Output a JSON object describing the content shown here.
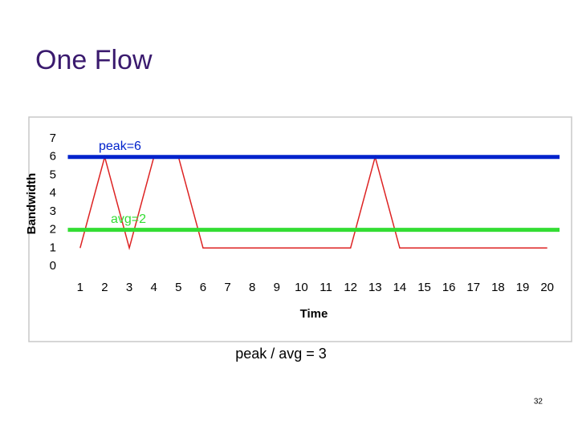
{
  "slide": {
    "title": "One Flow",
    "caption": "peak / avg = 3",
    "page_number": "32"
  },
  "chart_data": {
    "type": "line",
    "x_label": "Time",
    "y_label": "Bandwidth",
    "categories": [
      1,
      2,
      3,
      4,
      5,
      6,
      7,
      8,
      9,
      10,
      11,
      12,
      13,
      14,
      15,
      16,
      17,
      18,
      19,
      20
    ],
    "values": [
      1,
      6,
      1,
      6,
      6,
      1,
      1,
      1,
      1,
      1,
      1,
      1,
      6,
      1,
      1,
      1,
      1,
      1,
      1,
      1
    ],
    "color": "#dd2222",
    "ylim": [
      0,
      7
    ],
    "yticks": [
      0,
      1,
      2,
      3,
      4,
      5,
      6,
      7
    ],
    "grid": false,
    "reference_lines": [
      {
        "label": "peak=6",
        "value": 6,
        "color": "#0022cc"
      },
      {
        "label": "avg=2",
        "value": 2,
        "color": "#33dd33"
      }
    ]
  }
}
